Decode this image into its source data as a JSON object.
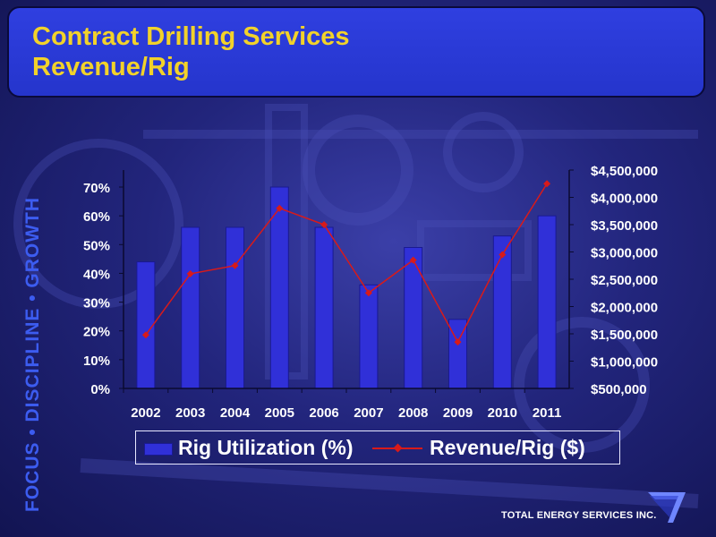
{
  "header": {
    "title_line1": "Contract Drilling Services",
    "title_line2": "Revenue/Rig"
  },
  "side_slogan": "FOCUS • DISCIPLINE • GROWTH",
  "footer": {
    "company": "TOTAL ENERGY SERVICES INC.",
    "logo_icon": "company-logo-icon"
  },
  "colors": {
    "title_text": "#f2d22a",
    "title_box": "#2a3ad6",
    "bar_fill": "#3030d8",
    "line_color": "#d81a1a",
    "slogan_text": "#3c5cf0"
  },
  "chart_data": {
    "type": "bar",
    "categories": [
      "2002",
      "2003",
      "2004",
      "2005",
      "2006",
      "2007",
      "2008",
      "2009",
      "2010",
      "2011"
    ],
    "series": [
      {
        "name": "Rig Utilization (%)",
        "type": "bar",
        "axis": "left",
        "values": [
          44,
          56,
          56,
          70,
          56,
          36,
          49,
          24,
          53,
          60
        ]
      },
      {
        "name": "Revenue/Rig ($)",
        "type": "line",
        "axis": "right",
        "values": [
          1480000,
          2600000,
          2750000,
          3800000,
          3500000,
          2250000,
          2850000,
          1350000,
          2950000,
          4250000
        ]
      }
    ],
    "left_axis": {
      "min": 0,
      "max": 70,
      "ticks": [
        0,
        10,
        20,
        30,
        40,
        50,
        60,
        70
      ],
      "tick_labels": [
        "0%",
        "10%",
        "20%",
        "30%",
        "40%",
        "50%",
        "60%",
        "70%"
      ]
    },
    "right_axis": {
      "min": 500000,
      "max": 4500000,
      "ticks": [
        500000,
        1000000,
        1500000,
        2000000,
        2500000,
        3000000,
        3500000,
        4000000,
        4500000
      ],
      "tick_labels": [
        "$500,000",
        "$1,000,000",
        "$1,500,000",
        "$2,000,000",
        "$2,500,000",
        "$3,000,000",
        "$3,500,000",
        "$4,000,000",
        "$4,500,000"
      ]
    },
    "legend": {
      "placement": "bottom",
      "labels": [
        "Rig Utilization (%)",
        "Revenue/Rig ($)"
      ]
    },
    "grid": false
  }
}
